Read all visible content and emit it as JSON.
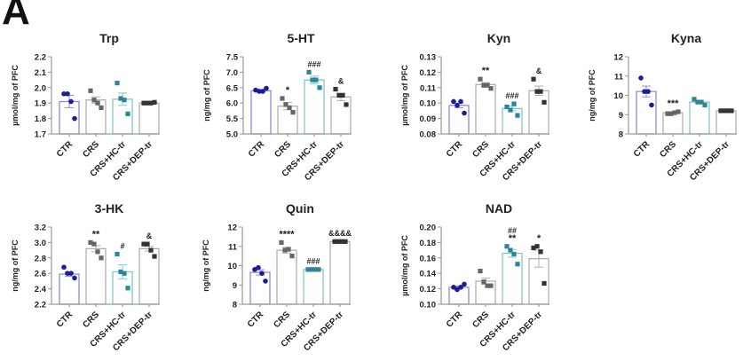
{
  "panel_letter": "A",
  "colors": {
    "CTR": {
      "point": "#1c1c99",
      "bar": "#8c8cdc"
    },
    "CRS": {
      "point": "#666666",
      "bar": "#b0b0b0"
    },
    "CRS+HC-tr": {
      "point": "#2a8896",
      "bar": "#86c6cc"
    },
    "CRS+DEP-tr": {
      "point": "#333333",
      "bar": "#b0b0b0"
    }
  },
  "chart_data": [
    {
      "type": "bar",
      "title": "Trp",
      "ylabel": "µmol/mg of PFC",
      "ylim": [
        1.7,
        2.2
      ],
      "yticks": [
        "1.7",
        "1.8",
        "1.9",
        "2.0",
        "2.1",
        "2.2"
      ],
      "categories": [
        "CTR",
        "CRS",
        "CRS+HC-tr",
        "CRS+DEP-tr"
      ],
      "means": [
        1.91,
        1.92,
        1.925,
        1.9
      ],
      "sem": [
        0.04,
        0.02,
        0.04,
        0.003
      ],
      "points": [
        [
          1.96,
          1.96,
          1.91,
          1.8
        ],
        [
          1.98,
          1.92,
          1.9,
          1.87
        ],
        [
          2.03,
          1.93,
          1.92,
          1.83
        ],
        [
          1.9,
          1.9,
          1.9,
          1.905
        ]
      ],
      "annotations": [
        [],
        [],
        [],
        []
      ]
    },
    {
      "type": "bar",
      "title": "5-HT",
      "ylabel": "ng/mg of PFC",
      "ylim": [
        5.0,
        7.5
      ],
      "yticks": [
        "5.0",
        "5.5",
        "6.0",
        "6.5",
        "7.0",
        "7.5"
      ],
      "categories": [
        "CTR",
        "CRS",
        "CRS+HC-tr",
        "CRS+DEP-tr"
      ],
      "means": [
        6.4,
        5.9,
        6.75,
        6.2
      ],
      "sem": [
        0.03,
        0.12,
        0.12,
        0.12
      ],
      "points": [
        [
          6.42,
          6.38,
          6.38,
          6.48
        ],
        [
          6.15,
          5.95,
          5.85,
          5.7
        ],
        [
          7.0,
          6.75,
          6.75,
          6.5
        ],
        [
          6.45,
          6.25,
          6.25,
          5.95
        ]
      ],
      "annotations": [
        [],
        [
          "*"
        ],
        [
          "###"
        ],
        [
          "&"
        ]
      ]
    },
    {
      "type": "bar",
      "title": "Kyn",
      "ylabel": "µmol/mg of PFC",
      "ylim": [
        0.08,
        0.13
      ],
      "yticks": [
        "0.08",
        "0.09",
        "0.10",
        "0.11",
        "0.12",
        "0.13"
      ],
      "categories": [
        "CTR",
        "CRS",
        "CRS+HC-tr",
        "CRS+DEP-tr"
      ],
      "means": [
        0.0985,
        0.112,
        0.0965,
        0.108
      ],
      "sem": [
        0.0015,
        0.0012,
        0.0015,
        0.003
      ],
      "points": [
        [
          0.101,
          0.0985,
          0.101,
          0.0935
        ],
        [
          0.1155,
          0.1115,
          0.1115,
          0.1095
        ],
        [
          0.0975,
          0.0955,
          0.0995,
          0.092
        ],
        [
          0.1155,
          0.1075,
          0.1075,
          0.1005
        ]
      ],
      "annotations": [
        [],
        [
          "**"
        ],
        [
          "###"
        ],
        [
          "&"
        ]
      ]
    },
    {
      "type": "bar",
      "title": "Kyna",
      "ylabel": "ng/mg of PFC",
      "ylim": [
        8,
        12
      ],
      "yticks": [
        "8",
        "9",
        "10",
        "11",
        "12"
      ],
      "categories": [
        "CTR",
        "CRS",
        "CRS+HC-tr",
        "CRS+DEP-tr"
      ],
      "means": [
        10.2,
        9.1,
        9.65,
        9.2
      ],
      "sem": [
        0.28,
        0.03,
        0.06,
        0.01
      ],
      "points": [
        [
          10.9,
          10.2,
          10.2,
          9.5
        ],
        [
          9.05,
          9.05,
          9.1,
          9.15
        ],
        [
          9.8,
          9.65,
          9.65,
          9.5
        ],
        [
          9.2,
          9.2,
          9.2,
          9.2
        ]
      ],
      "annotations": [
        [],
        [
          "***"
        ],
        [],
        []
      ]
    },
    {
      "type": "bar",
      "title": "3-HK",
      "ylabel": "ng/mg of PFC",
      "ylim": [
        2.2,
        3.2
      ],
      "yticks": [
        "2.2",
        "2.4",
        "2.6",
        "2.8",
        "3.0",
        "3.2"
      ],
      "categories": [
        "CTR",
        "CRS",
        "CRS+HC-tr",
        "CRS+DEP-tr"
      ],
      "means": [
        2.59,
        2.92,
        2.62,
        2.92
      ],
      "sem": [
        0.03,
        0.04,
        0.09,
        0.03
      ],
      "points": [
        [
          2.68,
          2.6,
          2.6,
          2.54
        ],
        [
          3.0,
          2.98,
          2.88,
          2.8
        ],
        [
          2.85,
          2.62,
          2.6,
          2.41
        ],
        [
          2.98,
          2.98,
          2.9,
          2.82
        ]
      ],
      "annotations": [
        [],
        [
          "**"
        ],
        [
          "#"
        ],
        [
          "&"
        ]
      ]
    },
    {
      "type": "bar",
      "title": "Quin",
      "ylabel": "ng/mg of PFC",
      "ylim": [
        8,
        12
      ],
      "yticks": [
        "8",
        "9",
        "10",
        "11",
        "12"
      ],
      "categories": [
        "CTR",
        "CRS",
        "CRS+HC-tr",
        "CRS+DEP-tr"
      ],
      "means": [
        9.65,
        10.8,
        9.8,
        11.25
      ],
      "sem": [
        0.14,
        0.15,
        0.01,
        0.01
      ],
      "points": [
        [
          9.8,
          9.9,
          9.6,
          9.2
        ],
        [
          11.2,
          10.8,
          10.85,
          10.5
        ],
        [
          9.8,
          9.8,
          9.8,
          9.8
        ],
        [
          11.25,
          11.25,
          11.25,
          11.25
        ]
      ],
      "annotations": [
        [],
        [
          "****"
        ],
        [
          "###"
        ],
        [
          "&&&&"
        ]
      ]
    },
    {
      "type": "bar",
      "title": "NAD",
      "ylabel": "µmol/mg of PFC",
      "ylim": [
        0.1,
        0.2
      ],
      "yticks": [
        "0.10",
        "0.12",
        "0.14",
        "0.16",
        "0.18",
        "0.20"
      ],
      "categories": [
        "CTR",
        "CRS",
        "CRS+HC-tr",
        "CRS+DEP-tr"
      ],
      "means": [
        0.122,
        0.13,
        0.166,
        0.159
      ],
      "sem": [
        0.0015,
        0.004,
        0.005,
        0.011
      ],
      "points": [
        [
          0.122,
          0.119,
          0.122,
          0.126
        ],
        [
          0.143,
          0.129,
          0.124,
          0.124
        ],
        [
          0.175,
          0.17,
          0.165,
          0.152
        ],
        [
          0.173,
          0.175,
          0.168,
          0.127
        ]
      ],
      "annotations": [
        [],
        [],
        [
          "**",
          "##"
        ],
        [
          "*"
        ]
      ]
    }
  ]
}
